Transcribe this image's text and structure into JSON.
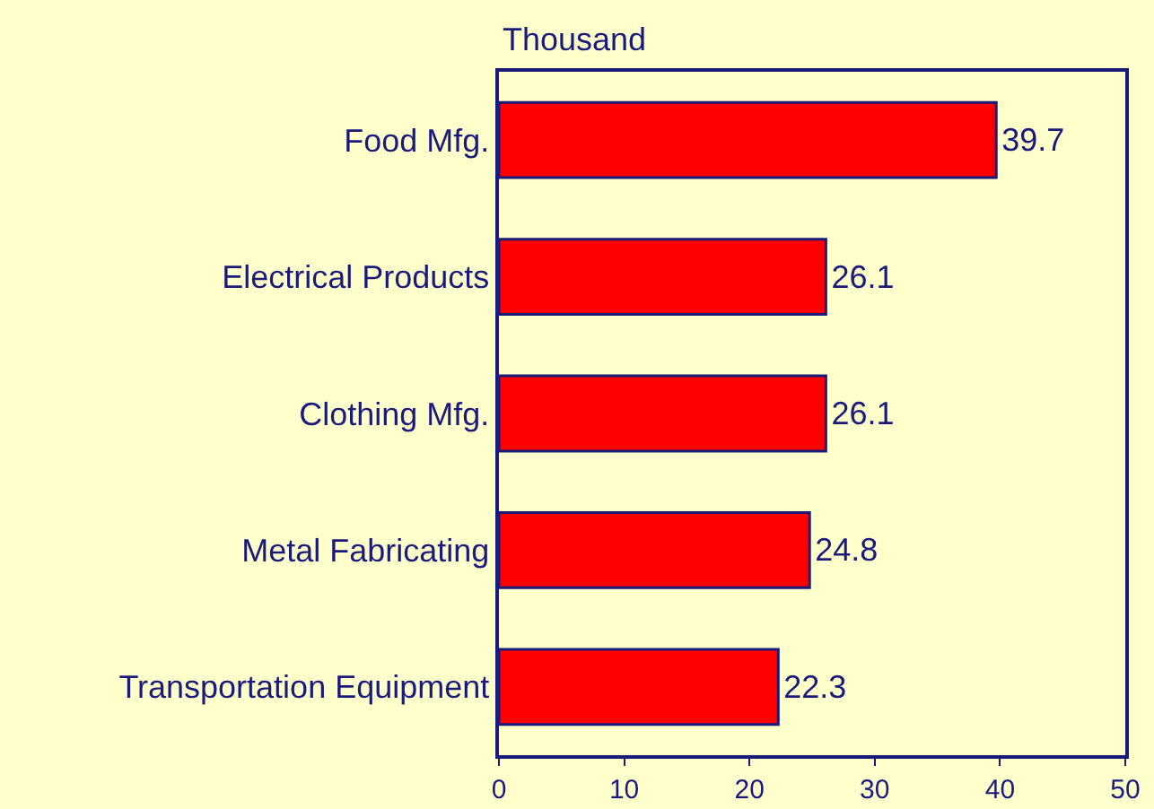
{
  "chart_data": {
    "type": "bar",
    "orientation": "horizontal",
    "xlabel": "Thousand",
    "categories": [
      "Food Mfg.",
      "Electrical Products",
      "Clothing Mfg.",
      "Metal Fabricating",
      "Transportation Equipment"
    ],
    "values": [
      39.7,
      26.1,
      26.1,
      24.8,
      22.3
    ],
    "color": "#ff0000",
    "xlim": [
      0,
      50
    ],
    "xticks": [
      0,
      10,
      20,
      30,
      40,
      50
    ],
    "data_labels": true,
    "grid": false,
    "legend": false
  }
}
